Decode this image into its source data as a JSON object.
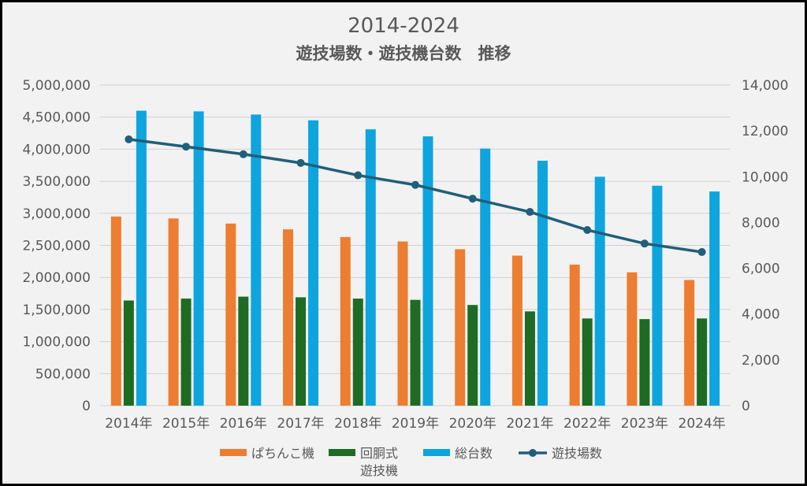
{
  "chart_data": {
    "type": "bar",
    "title": "2014-2024",
    "subtitle": "遊技場数・遊技機台数　推移",
    "categories": [
      "2014年",
      "2015年",
      "2016年",
      "2017年",
      "2018年",
      "2019年",
      "2020年",
      "2021年",
      "2022年",
      "2023年",
      "2024年"
    ],
    "y_left": {
      "min": 0,
      "max": 5000000,
      "step": 500000,
      "ticks": [
        "0",
        "500,000",
        "1,000,000",
        "1,500,000",
        "2,000,000",
        "2,500,000",
        "3,000,000",
        "3,500,000",
        "4,000,000",
        "4,500,000",
        "5,000,000"
      ]
    },
    "y_right": {
      "min": 0,
      "max": 14000,
      "step": 2000,
      "ticks": [
        "0",
        "2,000",
        "4,000",
        "6,000",
        "8,000",
        "10,000",
        "12,000",
        "14,000"
      ]
    },
    "grid": true,
    "legend_position": "bottom",
    "series": [
      {
        "name": "ぱちんこ機",
        "type": "bar",
        "axis": "left",
        "color": "#ed7d31",
        "values": [
          2950000,
          2920000,
          2840000,
          2750000,
          2630000,
          2560000,
          2440000,
          2340000,
          2200000,
          2080000,
          1960000
        ]
      },
      {
        "name": "回胴式遊技機",
        "legend_lines": [
          "回胴式",
          "遊技機"
        ],
        "type": "bar",
        "axis": "left",
        "color": "#1e6b24",
        "values": [
          1640000,
          1670000,
          1700000,
          1690000,
          1670000,
          1650000,
          1570000,
          1470000,
          1360000,
          1350000,
          1360000
        ]
      },
      {
        "name": "総台数",
        "type": "bar",
        "axis": "left",
        "color": "#0ea5df",
        "values": [
          4600000,
          4590000,
          4540000,
          4450000,
          4310000,
          4200000,
          4010000,
          3820000,
          3570000,
          3430000,
          3340000
        ]
      },
      {
        "name": "遊技場数",
        "type": "line",
        "axis": "right",
        "color": "#1f5f7a",
        "values": [
          11630,
          11310,
          10980,
          10600,
          10060,
          9640,
          9040,
          8460,
          7670,
          7080,
          6710
        ]
      }
    ]
  }
}
